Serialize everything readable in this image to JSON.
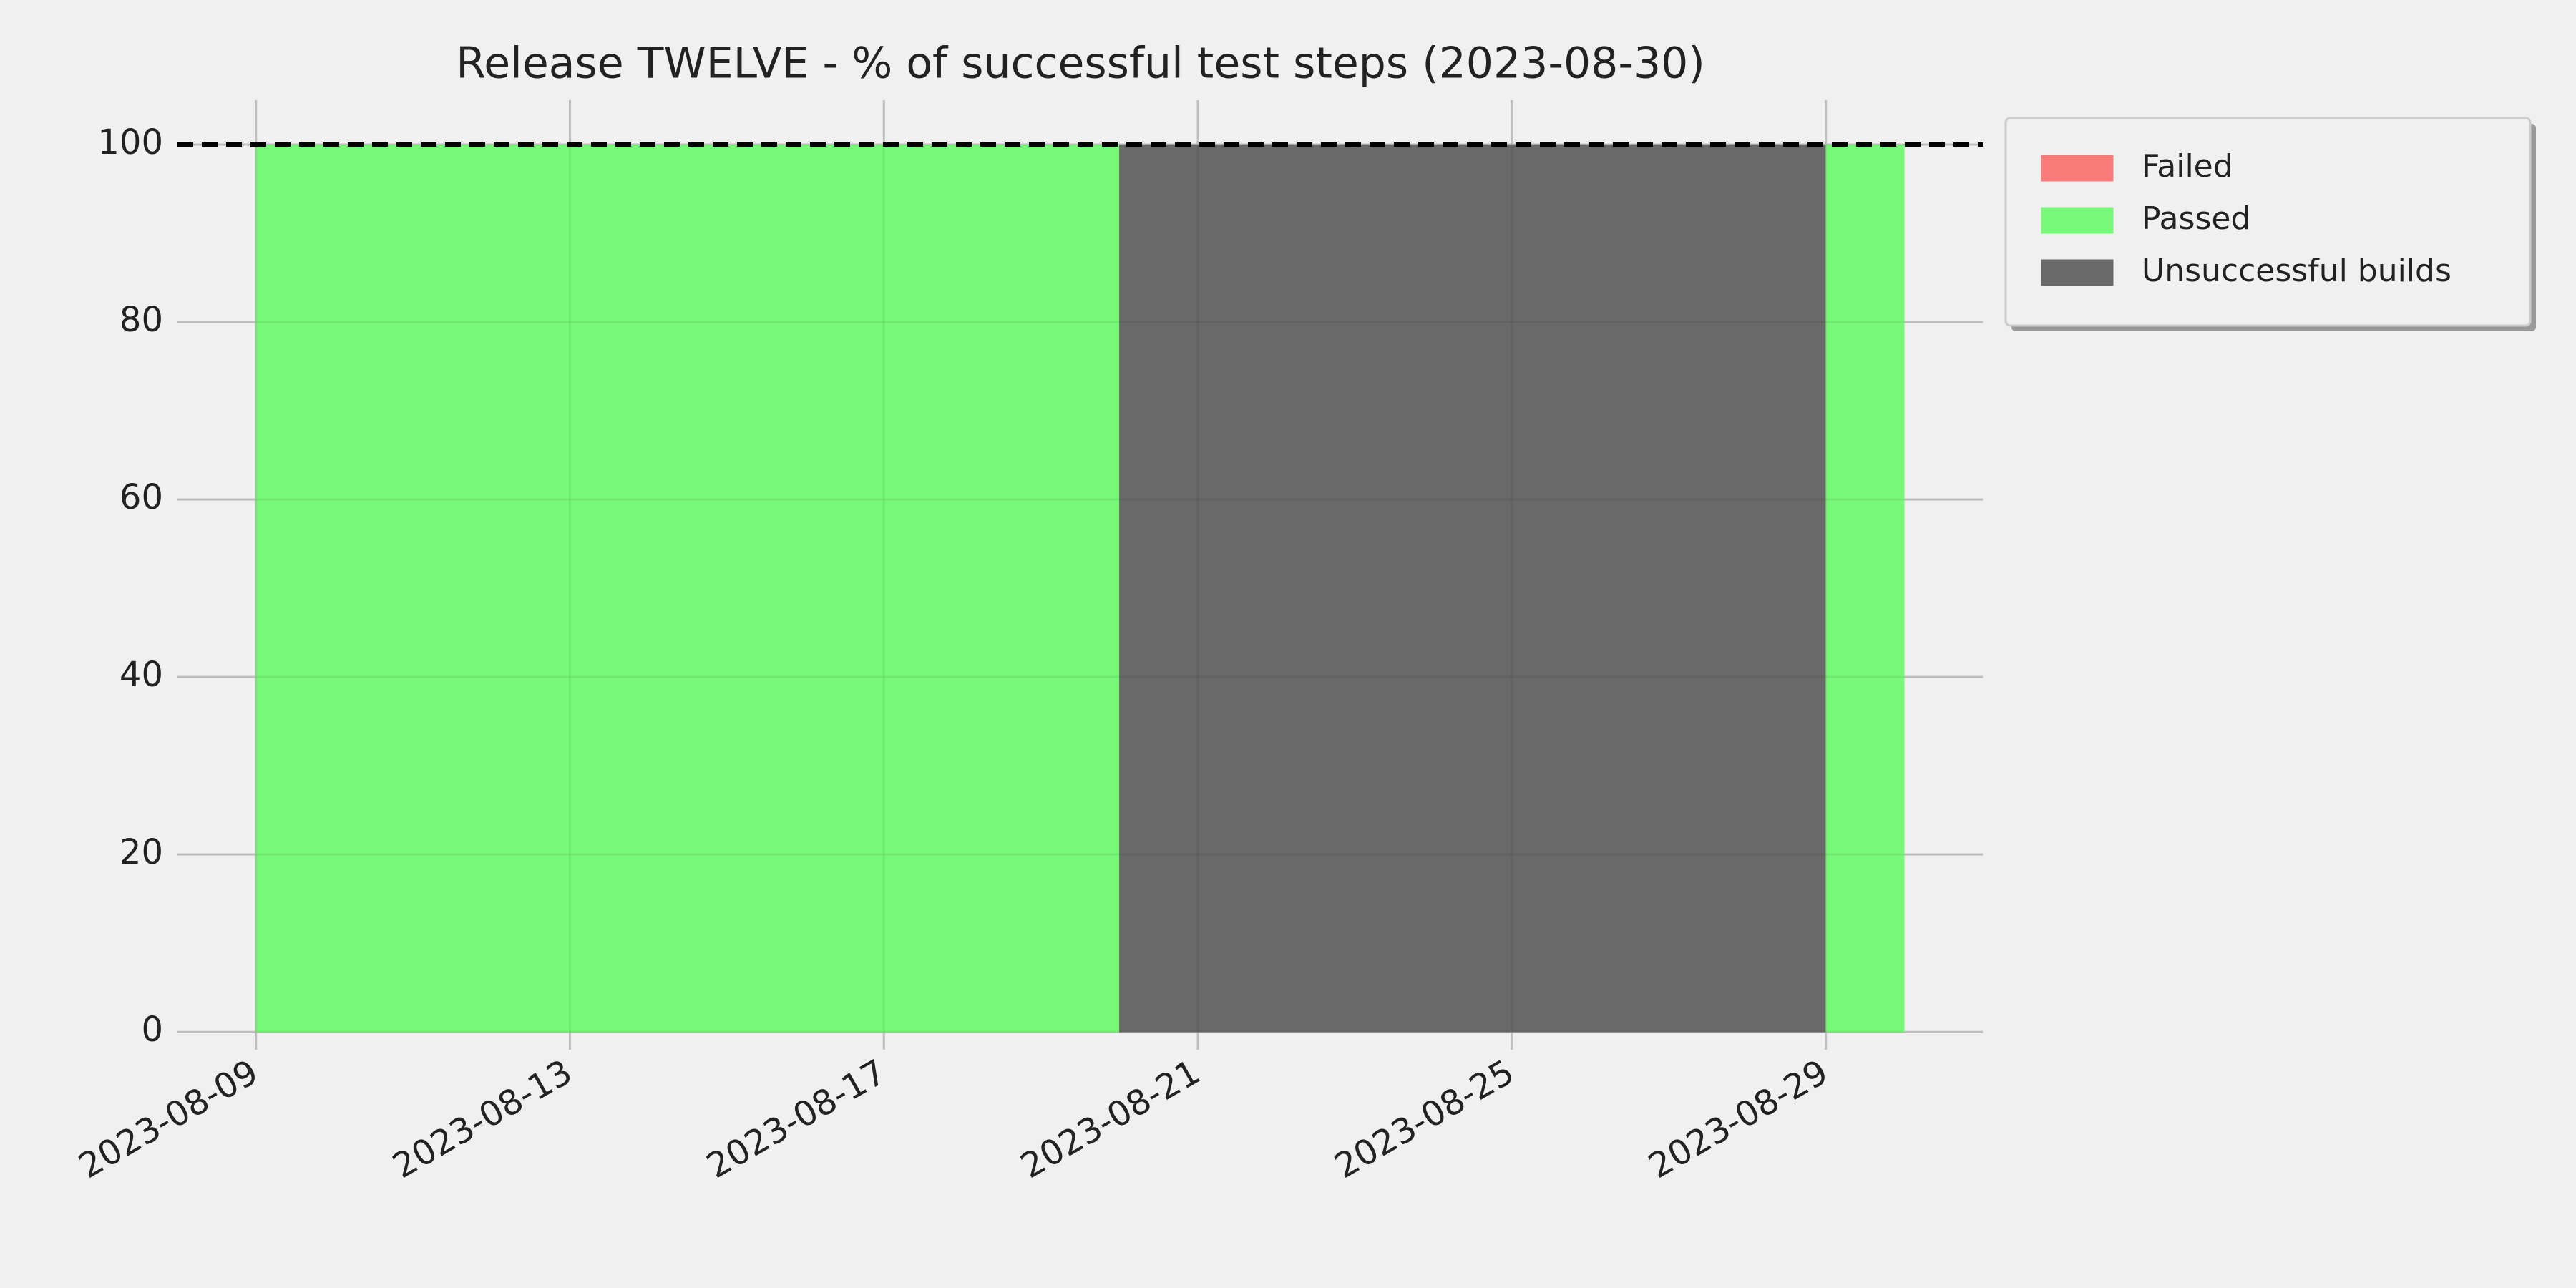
{
  "chart_data": {
    "type": "stacked-area",
    "step": "post",
    "title": "Release TWELVE - % of successful test steps (2023-08-30)",
    "x": [
      "2023-08-09",
      "2023-08-10",
      "2023-08-11",
      "2023-08-12",
      "2023-08-13",
      "2023-08-14",
      "2023-08-15",
      "2023-08-16",
      "2023-08-17",
      "2023-08-18",
      "2023-08-19",
      "2023-08-20",
      "2023-08-21",
      "2023-08-22",
      "2023-08-23",
      "2023-08-24",
      "2023-08-25",
      "2023-08-26",
      "2023-08-27",
      "2023-08-28",
      "2023-08-29",
      "2023-08-30"
    ],
    "series": [
      {
        "name": "Failed",
        "color": "#fb7b7b",
        "values": [
          0,
          0,
          0,
          0,
          0,
          0,
          0,
          0,
          0,
          0,
          0,
          0,
          0,
          0,
          0,
          0,
          0,
          0,
          0,
          0,
          0,
          0
        ]
      },
      {
        "name": "Passed",
        "color": "#78f878",
        "values": [
          100,
          100,
          100,
          100,
          100,
          100,
          100,
          100,
          100,
          100,
          100,
          0,
          0,
          0,
          0,
          0,
          0,
          0,
          0,
          0,
          100,
          100
        ]
      },
      {
        "name": "Unsuccessful builds",
        "color": "#696969",
        "values": [
          0,
          0,
          0,
          0,
          0,
          0,
          0,
          0,
          0,
          0,
          0,
          100,
          100,
          100,
          100,
          100,
          100,
          100,
          100,
          100,
          0,
          0
        ]
      }
    ],
    "reference_line": 100,
    "xlim": [
      "2023-08-08",
      "2023-08-31"
    ],
    "xticks": [
      "2023-08-09",
      "2023-08-13",
      "2023-08-17",
      "2023-08-21",
      "2023-08-25",
      "2023-08-29"
    ],
    "ylim": [
      -2,
      105
    ],
    "yticks": [
      0,
      20,
      40,
      60,
      80,
      100
    ],
    "grid": true,
    "legend": "outside-upper-right"
  }
}
